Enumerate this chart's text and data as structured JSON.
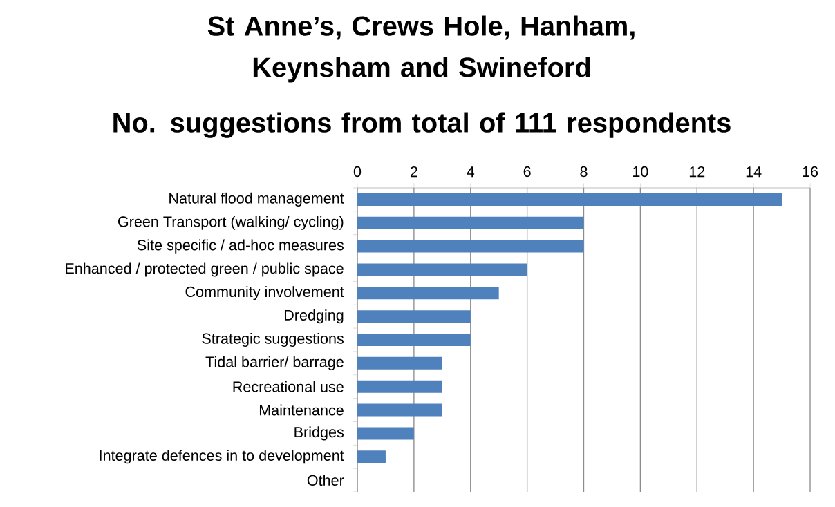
{
  "chart_data": {
    "type": "bar",
    "orientation": "horizontal",
    "title": "St Anne’s, Crews Hole, Hanham, Keynsham and Swineford",
    "subtitle": "No. suggestions from total of 111 respondents",
    "categories": [
      "Natural flood management",
      "Green Transport (walking/ cycling)",
      "Site specific / ad-hoc measures",
      "Enhanced / protected green / public space",
      "Community involvement",
      "Dredging",
      "Strategic suggestions",
      "Tidal barrier/ barrage",
      "Recreational use",
      "Maintenance",
      "Bridges",
      "Integrate defences  in to development",
      "Other"
    ],
    "values": [
      15,
      8,
      8,
      6,
      5,
      4,
      4,
      3,
      3,
      3,
      2,
      1,
      0
    ],
    "color": "#4f81bd",
    "xlim": [
      0,
      16
    ],
    "xticks": [
      0,
      2,
      4,
      6,
      8,
      10,
      12,
      14,
      16
    ],
    "grid": "x"
  }
}
